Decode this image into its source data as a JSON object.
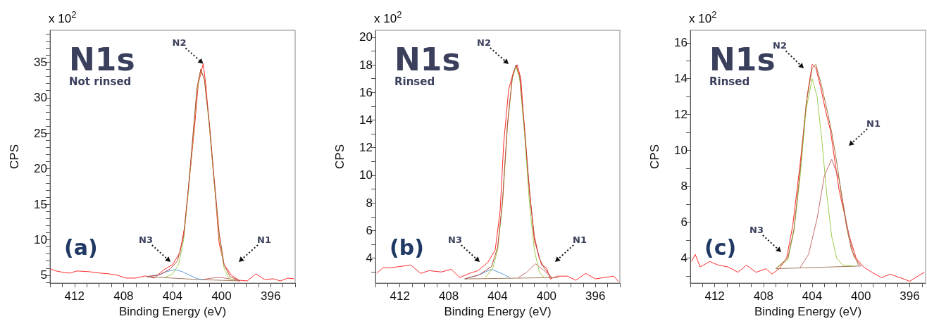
{
  "chart_data": [
    {
      "type": "line",
      "title": "N1s",
      "subtitle": "Not rinsed",
      "xlabel": "Binding Energy (eV)",
      "ylabel": "CPS",
      "xlim": [
        414,
        394
      ],
      "ylim": [
        3.9,
        39.5
      ],
      "xticks": [
        {
          "value": 414,
          "label": null
        },
        {
          "value": 413,
          "label": null
        },
        412,
        {
          "value": 411,
          "label": null
        },
        {
          "value": 410,
          "label": null
        },
        {
          "value": 409,
          "label": null
        },
        408,
        {
          "value": 407,
          "label": null
        },
        {
          "value": 406,
          "label": null
        },
        {
          "value": 405,
          "label": null
        },
        404,
        {
          "value": 403,
          "label": null
        },
        {
          "value": 402,
          "label": null
        },
        {
          "value": 401,
          "label": null
        },
        400,
        {
          "value": 399,
          "label": null
        },
        {
          "value": 398,
          "label": null
        },
        {
          "value": 397,
          "label": null
        },
        396,
        {
          "value": 395,
          "label": null
        },
        {
          "value": 394,
          "label": null
        }
      ],
      "yticks": [
        {
          "value": 4,
          "label": null
        },
        5,
        {
          "value": 6,
          "label": null
        },
        {
          "value": 7,
          "label": null
        },
        {
          "value": 8,
          "label": null
        },
        {
          "value": 9,
          "label": null
        },
        10,
        {
          "value": 11,
          "label": null
        },
        {
          "value": 12,
          "label": null
        },
        {
          "value": 13,
          "label": null
        },
        {
          "value": 14,
          "label": null
        },
        15,
        {
          "value": 16,
          "label": null
        },
        {
          "value": 17,
          "label": null
        },
        {
          "value": 18,
          "label": null
        },
        {
          "value": 19,
          "label": null
        },
        20,
        {
          "value": 21,
          "label": null
        },
        {
          "value": 22,
          "label": null
        },
        {
          "value": 23,
          "label": null
        },
        {
          "value": 24,
          "label": null
        },
        25,
        {
          "value": 26,
          "label": null
        },
        {
          "value": 27,
          "label": null
        },
        {
          "value": 28,
          "label": null
        },
        {
          "value": 29,
          "label": null
        },
        30,
        {
          "value": 31,
          "label": null
        },
        {
          "value": 32,
          "label": null
        },
        {
          "value": 33,
          "label": null
        },
        {
          "value": 34,
          "label": null
        },
        35,
        {
          "value": 36,
          "label": null
        },
        {
          "value": 37,
          "label": null
        },
        {
          "value": 38,
          "label": null
        },
        {
          "value": 39,
          "label": null
        }
      ],
      "series": [
        {
          "color": "#ff2a2a",
          "x": [
            414,
            413.5,
            412.9,
            412.4,
            411.8,
            410.8,
            409.9,
            409.2,
            408.5,
            407.8,
            407,
            406.2,
            405.5,
            404.7,
            404,
            403.4,
            403,
            402.6,
            402.2,
            401.9,
            401.5,
            401.3,
            400.9,
            400.5,
            400.2,
            399.8,
            399.2,
            398.6,
            397.9,
            397.2,
            396.5,
            395.8,
            395.2,
            394.6,
            394.1
          ],
          "values": [
            5.9,
            5.6,
            5.4,
            5.3,
            5.6,
            5.5,
            5.3,
            5.2,
            5,
            4.6,
            4.6,
            4.9,
            4.6,
            5.8,
            6.5,
            8.2,
            12,
            19,
            26,
            32,
            34.8,
            32,
            24,
            16,
            9.5,
            6.5,
            5,
            4.3,
            4.2,
            5.2,
            4.4,
            4.5,
            4.2,
            4.6,
            4.5
          ]
        },
        {
          "color": "#a0785a",
          "x": [
            406.1,
            402,
            398.5
          ],
          "values": [
            4.8,
            4.4,
            4.2
          ]
        },
        {
          "color": "#5b9bd5",
          "x": [
            406.1,
            405.2,
            404.5,
            403.8,
            403.2,
            402.6,
            402,
            401.5
          ],
          "values": [
            4.8,
            5,
            5.5,
            5.8,
            5.5,
            5,
            4.5,
            4.4
          ]
        },
        {
          "color": "#c96b6b",
          "x": [
            401.5,
            400.8,
            400.1,
            399.4,
            398.5
          ],
          "values": [
            4.4,
            4.6,
            4.7,
            4.5,
            4.2
          ]
        },
        {
          "color": "#9ccc4c",
          "x": [
            404.6,
            404,
            403.5,
            403.1,
            402.7,
            402.3,
            402,
            401.7,
            401.4,
            401,
            400.6,
            400.2,
            399.8,
            399.4,
            399
          ],
          "values": [
            4.7,
            5.2,
            6.5,
            10,
            17,
            25,
            31,
            34,
            32.5,
            26,
            18,
            10.5,
            6,
            4.6,
            4.3
          ]
        },
        {
          "color": "#b5473a",
          "x": [
            406.1,
            405,
            404.2,
            403.6,
            403.1,
            402.7,
            402.3,
            402,
            401.7,
            401.4,
            401,
            400.6,
            400.2,
            399.8,
            399.3,
            398.5
          ],
          "values": [
            4.8,
            5.1,
            5.9,
            7,
            10.5,
            17.5,
            25.5,
            31.5,
            34,
            32.5,
            26.5,
            18.5,
            11,
            6.5,
            4.8,
            4.2
          ]
        }
      ],
      "annotations": [
        "(a)",
        "x 10$^{2}$",
        {
          "text": "N2",
          "x": 401.5,
          "y": 34.8
        },
        "N3",
        "N1"
      ]
    },
    {
      "type": "line",
      "title": "N1s",
      "subtitle": "Rinsed",
      "xlabel": "Binding Energy (eV)",
      "ylabel": "CPS",
      "xlim": [
        414,
        394
      ],
      "ylim": [
        2.2,
        20.5
      ],
      "xticks": [
        {
          "value": 414,
          "label": null
        },
        {
          "value": 413,
          "label": null
        },
        412,
        {
          "value": 411,
          "label": null
        },
        {
          "value": 410,
          "label": null
        },
        {
          "value": 409,
          "label": null
        },
        408,
        {
          "value": 407,
          "label": null
        },
        {
          "value": 406,
          "label": null
        },
        {
          "value": 405,
          "label": null
        },
        404,
        {
          "value": 403,
          "label": null
        },
        {
          "value": 402,
          "label": null
        },
        {
          "value": 401,
          "label": null
        },
        400,
        {
          "value": 399,
          "label": null
        },
        {
          "value": 398,
          "label": null
        },
        {
          "value": 397,
          "label": null
        },
        396,
        {
          "value": 395,
          "label": null
        },
        {
          "value": 394,
          "label": null
        }
      ],
      "yticks": [
        {
          "value": 3,
          "label": null
        },
        4,
        {
          "value": 5,
          "label": null
        },
        6,
        {
          "value": 7,
          "label": null
        },
        8,
        {
          "value": 9,
          "label": null
        },
        10,
        {
          "value": 11,
          "label": null
        },
        12,
        {
          "value": 13,
          "label": null
        },
        14,
        {
          "value": 15,
          "label": null
        },
        16,
        {
          "value": 17,
          "label": null
        },
        18,
        {
          "value": 19,
          "label": null
        },
        20
      ],
      "series": [
        {
          "color": "#ff2a2a",
          "x": [
            413.9,
            413.4,
            412.8,
            412,
            411.1,
            410.3,
            409.6,
            408.6,
            407.8,
            407.1,
            406.3,
            405.6,
            404.8,
            404.2,
            403.8,
            403.5,
            403.1,
            402.7,
            402.4,
            402.1,
            401.8,
            401.4,
            401,
            400.4,
            400,
            399.7,
            399.1,
            398.3,
            397.6,
            396.8,
            396,
            395.3,
            394.5,
            394.1
          ],
          "values": [
            2.9,
            3.3,
            3.3,
            3.4,
            3.5,
            2.9,
            3.1,
            3,
            3.2,
            2.6,
            2.9,
            3.1,
            3.7,
            4.6,
            7.4,
            12.4,
            16.2,
            17.5,
            18,
            17,
            13.1,
            9,
            5.3,
            3.5,
            3.3,
            2.5,
            2.7,
            2.7,
            2.4,
            2.9,
            2.5,
            2.6,
            2.7,
            2.3
          ]
        },
        {
          "color": "#a0785a",
          "x": [
            406.7,
            399
          ],
          "values": [
            2.5,
            2.6
          ]
        },
        {
          "color": "#5b9bd5",
          "x": [
            406.7,
            405.5,
            404.5,
            403.7,
            403
          ],
          "values": [
            2.5,
            2.8,
            3.2,
            2.9,
            2.6
          ]
        },
        {
          "color": "#c96b6b",
          "x": [
            402.3,
            401.6,
            400.9,
            400.2,
            399.6
          ],
          "values": [
            2.6,
            3,
            3.6,
            3.1,
            2.6
          ]
        },
        {
          "color": "#9ccc4c",
          "x": [
            405,
            404.4,
            404,
            403.6,
            403.2,
            402.8,
            402.5,
            402.2,
            401.8,
            401.4,
            401,
            400.6,
            400.2
          ],
          "values": [
            2.6,
            3.3,
            4.6,
            8,
            13.5,
            17,
            17.9,
            17,
            13,
            8,
            4.6,
            3,
            2.6
          ]
        },
        {
          "color": "#b5473a",
          "x": [
            406.7,
            405.5,
            404.5,
            404,
            403.6,
            403.2,
            402.8,
            402.5,
            402.2,
            401.8,
            401.4,
            401,
            400.6,
            400.2,
            399.6
          ],
          "values": [
            2.5,
            2.8,
            3.4,
            4.8,
            8.2,
            13.7,
            17.1,
            18,
            17.2,
            13.5,
            8.8,
            5.6,
            4,
            3.3,
            2.6
          ]
        }
      ],
      "annotations": [
        "(b)",
        "x 10$^{2}$",
        "N2",
        "N3",
        "N1"
      ]
    },
    {
      "type": "line",
      "title": "N1s",
      "subtitle": "Rinsed",
      "xlabel": "Binding Energy (eV)",
      "ylabel": "CPS",
      "xlim": [
        414,
        394.7
      ],
      "ylim": [
        2.6,
        16.7
      ],
      "xticks": [
        {
          "value": 414,
          "label": null
        },
        {
          "value": 413,
          "label": null
        },
        412,
        {
          "value": 411,
          "label": null
        },
        {
          "value": 410,
          "label": null
        },
        {
          "value": 409,
          "label": null
        },
        408,
        {
          "value": 407,
          "label": null
        },
        {
          "value": 406,
          "label": null
        },
        {
          "value": 405,
          "label": null
        },
        404,
        {
          "value": 403,
          "label": null
        },
        {
          "value": 402,
          "label": null
        },
        {
          "value": 401,
          "label": null
        },
        400,
        {
          "value": 399,
          "label": null
        },
        {
          "value": 398,
          "label": null
        },
        {
          "value": 397,
          "label": null
        },
        396,
        {
          "value": 395,
          "label": null
        }
      ],
      "yticks": [
        {
          "value": 3,
          "label": null
        },
        4,
        {
          "value": 5,
          "label": null
        },
        6,
        {
          "value": 7,
          "label": null
        },
        8,
        {
          "value": 9,
          "label": null
        },
        10,
        {
          "value": 11,
          "label": null
        },
        12,
        {
          "value": 13,
          "label": null
        },
        14,
        {
          "value": 15,
          "label": null
        },
        16
      ],
      "series": [
        {
          "color": "#ff2a2a",
          "x": [
            413.9,
            413.6,
            413.2,
            412.4,
            411.7,
            410.9,
            410.1,
            409.4,
            408.6,
            407.8,
            407.3,
            406.7,
            406.1,
            405.6,
            405,
            404.4,
            404,
            403.7,
            403.3,
            402.9,
            402.5,
            402.1,
            401.8,
            401.4,
            401,
            400.4,
            399.8,
            399.1,
            398.3,
            397.6,
            396.8,
            396,
            395.3,
            394.8
          ],
          "values": [
            3.8,
            4.2,
            3.5,
            3.8,
            3.6,
            3.5,
            3.2,
            3.6,
            3.2,
            3.4,
            3.1,
            3.4,
            4,
            5.8,
            9.2,
            13.1,
            14.8,
            14.6,
            13.5,
            12.2,
            11.1,
            9.2,
            7.8,
            6.6,
            5.3,
            4,
            3.5,
            3.2,
            2.9,
            3.1,
            2.9,
            2.7,
            3,
            3.2
          ]
        },
        {
          "color": "#a0785a",
          "x": [
            407,
            400
          ],
          "values": [
            3.4,
            3.55
          ]
        },
        {
          "color": "#9ccc4c",
          "x": [
            407,
            406,
            405.5,
            405,
            404.5,
            404,
            403.6,
            403.2,
            402.8,
            402.4,
            402,
            401.5,
            400.5
          ],
          "values": [
            3.4,
            3.9,
            5.5,
            8.5,
            12.3,
            14,
            13,
            10.5,
            7.5,
            5.2,
            4,
            3.6,
            3.55
          ]
        },
        {
          "color": "#c96b6b",
          "x": [
            405,
            404.3,
            403.6,
            403,
            402.4,
            401.8,
            401.2,
            400.6,
            400
          ],
          "values": [
            3.45,
            4.2,
            6.2,
            8.6,
            9.5,
            8.4,
            6,
            4.1,
            3.55
          ]
        },
        {
          "color": "#a0703a",
          "x": [
            407,
            406,
            405.5,
            405,
            404.5,
            404,
            403.7,
            403.2,
            402.8,
            402.4,
            402,
            401.6,
            401.2,
            400.8,
            400.2
          ],
          "values": [
            3.4,
            4,
            5.6,
            8.8,
            12.6,
            14.6,
            14.8,
            13.5,
            12.3,
            11,
            9.4,
            7.5,
            5.8,
            4.5,
            3.6
          ]
        }
      ],
      "annotations": [
        "(c)",
        "x 10$^{2}$",
        "N2",
        "N3",
        "N1"
      ]
    }
  ]
}
